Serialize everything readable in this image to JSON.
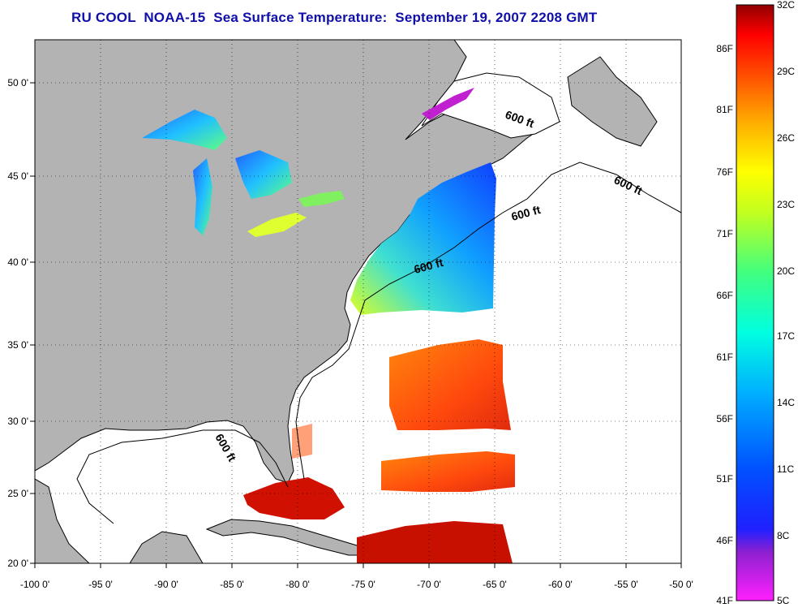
{
  "title": "RU COOL  NOAA-15  Sea Surface Temperature:  September 19, 2007 2208 GMT",
  "map": {
    "lon_ticks": [
      "-100 0'",
      "-95 0'",
      "-90 0'",
      "-85 0'",
      "-80 0'",
      "-75 0'",
      "-70 0'",
      "-65 0'",
      "-60 0'",
      "-55 0'",
      "-50 0'"
    ],
    "lat_ticks": [
      "50 0'",
      "45 0'",
      "40 0'",
      "35 0'",
      "30 0'",
      "25 0'",
      "20 0'"
    ],
    "isobath_label": "600 ft",
    "colors": {
      "land": "#b3b3b3",
      "ocean": "#ffffff",
      "coast": "#000000"
    }
  },
  "colorbar": {
    "celsius_labels": [
      "32C",
      "29C",
      "26C",
      "23C",
      "20C",
      "17C",
      "14C",
      "11C",
      "8C",
      "5C"
    ],
    "fahrenheit_labels": [
      "86F",
      "81F",
      "76F",
      "71F",
      "66F",
      "61F",
      "56F",
      "51F",
      "46F",
      "41F"
    ],
    "range_c": [
      5,
      32
    ]
  }
}
